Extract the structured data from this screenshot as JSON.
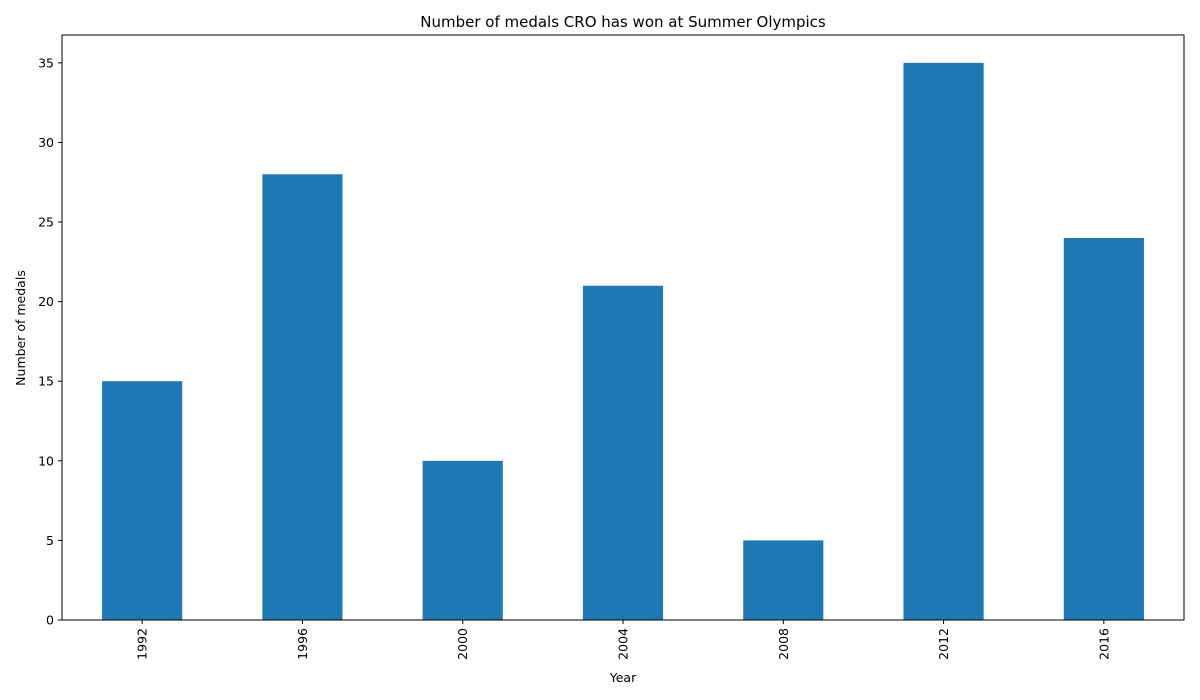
{
  "chart_data": {
    "type": "bar",
    "title": "Number of medals CRO has won at Summer Olympics",
    "xlabel": "Year",
    "ylabel": "Number of medals",
    "categories": [
      "1992",
      "1996",
      "2000",
      "2004",
      "2008",
      "2012",
      "2016"
    ],
    "values": [
      15,
      28,
      10,
      21,
      5,
      35,
      24
    ],
    "ylim": [
      0,
      36.75
    ],
    "yticks": [
      0,
      5,
      10,
      15,
      20,
      25,
      30,
      35
    ],
    "grid": false,
    "legend": "none",
    "bar_color": "#1f77b4",
    "xtick_rotation": "vertical"
  }
}
